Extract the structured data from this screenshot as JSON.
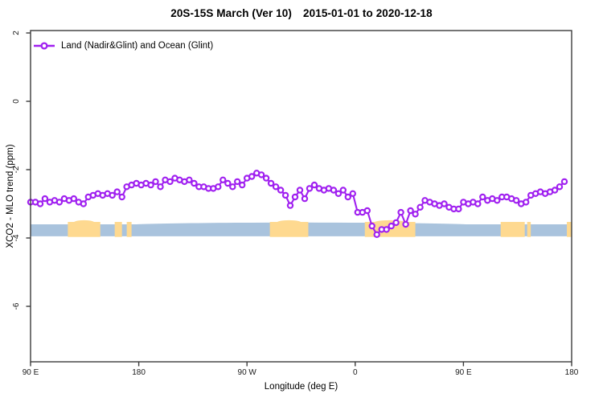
{
  "title": {
    "left": "20S-15S March (Ver 10)",
    "right": "2015-01-01 to 2020-12-18",
    "full": "20S-15S March (Ver 10)   2015-01-01 to 2020-12-18"
  },
  "legend": {
    "label": "Land (Nadir&Glint) and Ocean (Glint)",
    "marker": "open-circle-on-line",
    "position": "top-left-inside"
  },
  "axes": {
    "x": {
      "label": "Longitude (deg E)",
      "range_deg": [
        90,
        540
      ],
      "ticks": [
        {
          "lon": 90,
          "label": "90 E"
        },
        {
          "lon": 180,
          "label": "180"
        },
        {
          "lon": 270,
          "label": "90 W"
        },
        {
          "lon": 360,
          "label": "0"
        },
        {
          "lon": 450,
          "label": "90 E"
        },
        {
          "lon": 540,
          "label": "180"
        }
      ]
    },
    "y": {
      "label": "XCO2 - MLO trend (ppm)",
      "range": [
        -7.6,
        2.1
      ],
      "ticks": [
        {
          "v": 2,
          "label": "2"
        },
        {
          "v": 0,
          "label": "0"
        },
        {
          "v": -2,
          "label": "-2"
        },
        {
          "v": -4,
          "label": "-4"
        },
        {
          "v": -6,
          "label": "-6"
        }
      ],
      "tick_labels_rotated": true
    }
  },
  "colors": {
    "series": "#a020f0",
    "ocean_band": "#a9c3dd",
    "land_band": "#fed990",
    "frame": "#3b3b3b",
    "background": "#ffffff"
  },
  "chart_data": {
    "type": "line",
    "title": "20S-15S March (Ver 10)   2015-01-01 to 2020-12-18",
    "xlabel": "Longitude (deg E)",
    "ylabel": "XCO2 - MLO trend (ppm)",
    "x_units": "degrees longitude east, wrapping 90E through 180, 90W, 0 to 180",
    "xlim": [
      90,
      540
    ],
    "ylim": [
      -7.6,
      2.1
    ],
    "grid": false,
    "legend_position": "top-left-inside",
    "series": [
      {
        "name": "Land (Nadir&Glint) and Ocean (Glint)",
        "color": "#a020f0",
        "marker": "open-circle",
        "x_start": 90,
        "x_step": 4,
        "values": [
          -2.95,
          -2.95,
          -3.0,
          -2.85,
          -2.95,
          -2.9,
          -2.95,
          -2.85,
          -2.9,
          -2.85,
          -2.95,
          -3.0,
          -2.8,
          -2.75,
          -2.7,
          -2.75,
          -2.7,
          -2.75,
          -2.65,
          -2.8,
          -2.5,
          -2.45,
          -2.4,
          -2.45,
          -2.4,
          -2.45,
          -2.35,
          -2.5,
          -2.3,
          -2.35,
          -2.25,
          -2.3,
          -2.35,
          -2.3,
          -2.4,
          -2.5,
          -2.5,
          -2.55,
          -2.55,
          -2.5,
          -2.3,
          -2.4,
          -2.5,
          -2.35,
          -2.45,
          -2.25,
          -2.2,
          -2.1,
          -2.15,
          -2.25,
          -2.4,
          -2.5,
          -2.6,
          -2.75,
          -3.05,
          -2.8,
          -2.6,
          -2.85,
          -2.55,
          -2.45,
          -2.55,
          -2.6,
          -2.55,
          -2.6,
          -2.7,
          -2.6,
          -2.8,
          -2.7,
          -3.25,
          -3.25,
          -3.2,
          -3.65,
          -3.9,
          -3.75,
          -3.75,
          -3.65,
          -3.55,
          -3.25,
          -3.6,
          -3.2,
          -3.3,
          -3.1,
          -2.9,
          -2.95,
          -3.0,
          -3.05,
          -3.0,
          -3.1,
          -3.15,
          -3.15,
          -2.95,
          -3.0,
          -2.95,
          -3.0,
          -2.8,
          -2.9,
          -2.85,
          -2.9,
          -2.8,
          -2.8,
          -2.85,
          -2.9,
          -3.0,
          -2.95,
          -2.75,
          -2.7,
          -2.65,
          -2.7,
          -2.65,
          -2.6,
          -2.5,
          -2.35
        ]
      }
    ],
    "bands": [
      {
        "name": "ocean-glint-band",
        "color": "#a9c3dd",
        "segments_lon": [
          [
            90,
            540
          ]
        ],
        "value_range": [
          -3.6,
          -3.95
        ]
      },
      {
        "name": "land-band",
        "color": "#fed990",
        "segments_lon": [
          [
            121,
            148
          ],
          [
            160,
            166
          ],
          [
            170,
            174
          ],
          [
            289,
            321
          ],
          [
            368,
            410
          ],
          [
            481,
            501
          ],
          [
            503,
            506
          ],
          [
            536,
            540
          ]
        ],
        "value_range": [
          -3.53,
          -3.97
        ]
      }
    ]
  }
}
